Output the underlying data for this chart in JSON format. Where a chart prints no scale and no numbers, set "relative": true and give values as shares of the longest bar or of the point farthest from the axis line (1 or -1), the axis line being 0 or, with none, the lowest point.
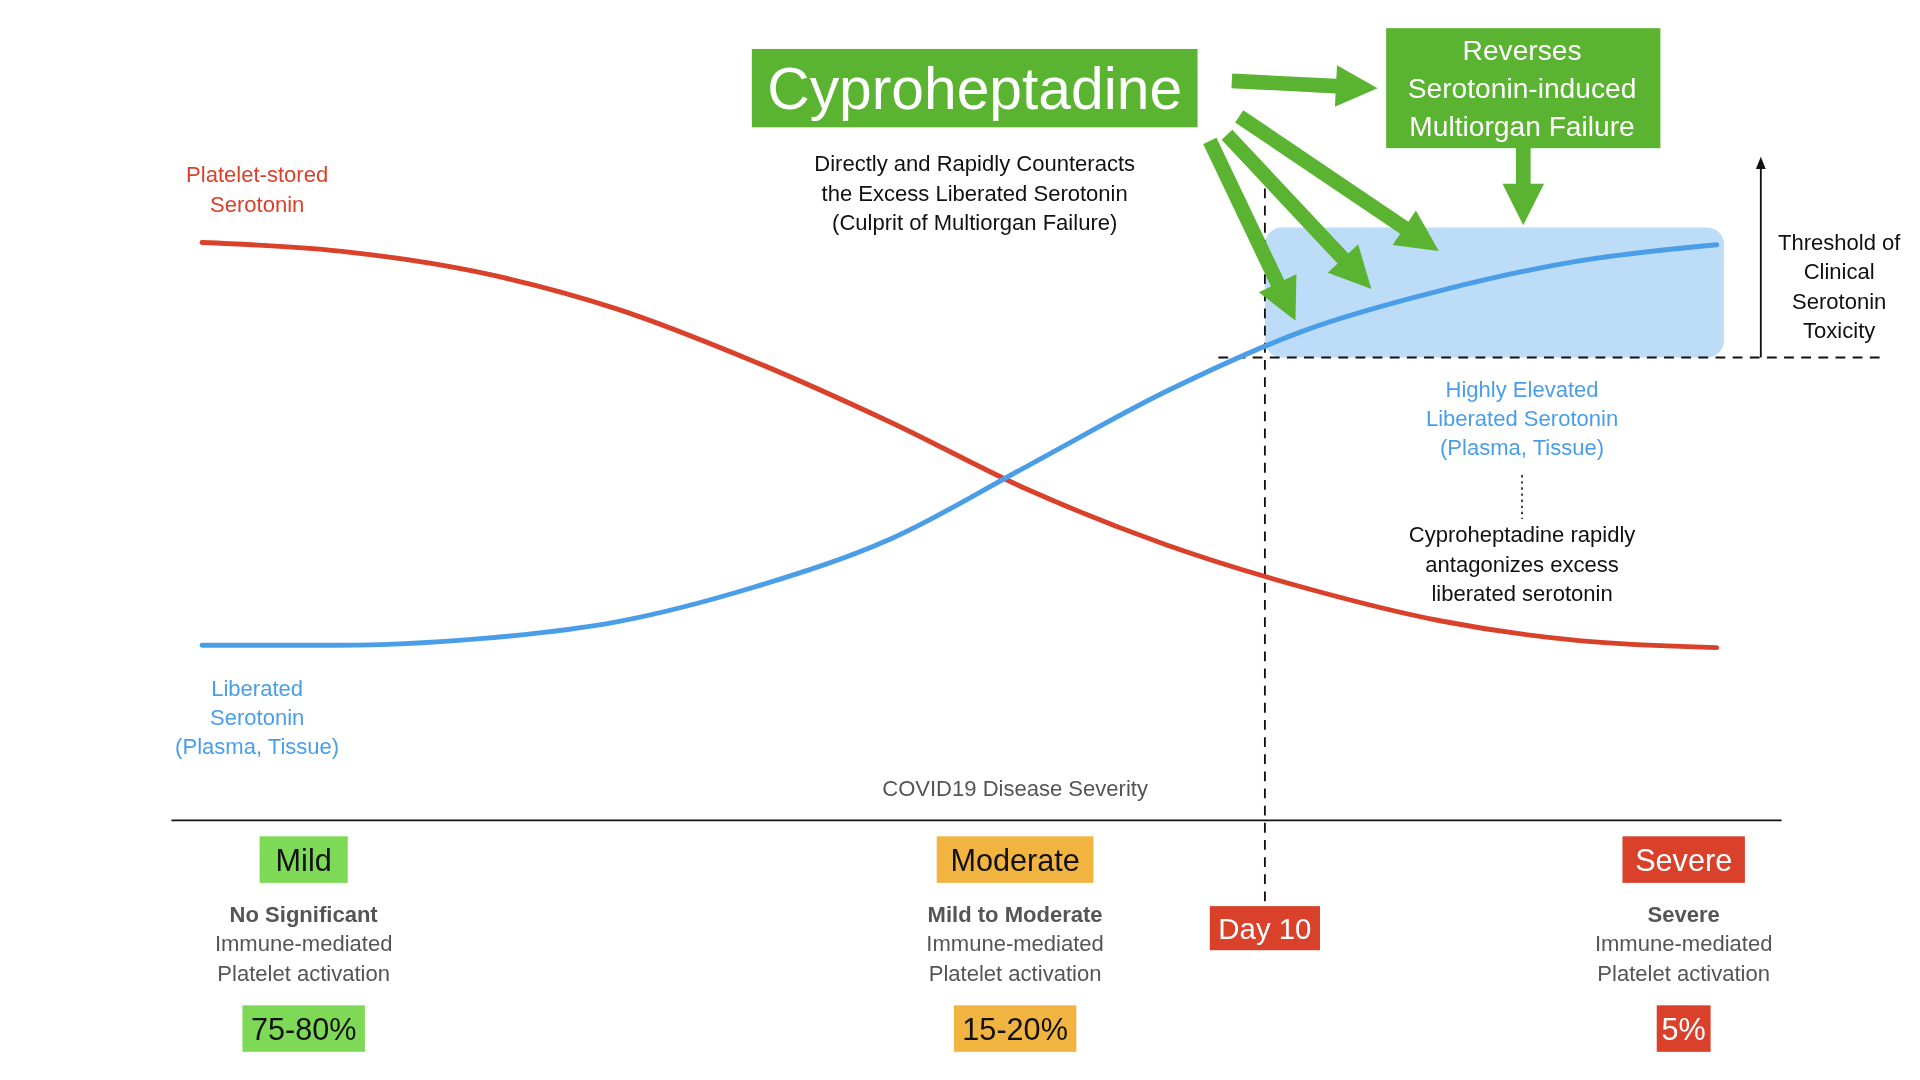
{
  "chart_data": {
    "type": "line",
    "relative": true,
    "xlabel": "COVID19 Disease Severity",
    "categories": [
      null,
      null,
      null,
      null,
      null,
      null,
      null,
      null,
      null,
      null,
      null,
      null
    ],
    "series": [
      {
        "name": "Platelet-stored Serotonin",
        "color": "#d9412b",
        "values": [
          1.0,
          0.985,
          0.949,
          0.886,
          0.795,
          0.689,
          0.572,
          0.477,
          0.403,
          0.345,
          0.311,
          0.299
        ]
      },
      {
        "name": "Liberated Serotonin (Plasma, Tissue)",
        "color": "#4a9ee8",
        "values": [
          0.303,
          0.303,
          0.314,
          0.343,
          0.403,
          0.487,
          0.614,
          0.742,
          0.847,
          0.917,
          0.968,
          0.996
        ]
      }
    ],
    "ref_lines": [
      {
        "axis": "y",
        "value": 0.801,
        "label": "Threshold of Clinical Serotonin Toxicity",
        "line_style": "dashed"
      }
    ],
    "bands": [
      {
        "axis": "y",
        "from": 0.801,
        "to": 1.026,
        "label": "Highly Elevated Liberated Serotonin (Plasma, Tissue)",
        "color": "#bcdcf7"
      }
    ],
    "annotations": [
      "Cyproheptadine",
      "Reverses Serotonin-induced Multiorgan Failure",
      "Directly and Rapidly Counteracts the Excess Liberated Serotonin (Culprit of Multiorgan Failure)",
      "Cyproheptadine rapidly antagonizes excess liberated serotonin",
      "Mild",
      "No Significant Immune-mediated Platelet activation",
      "75-80%",
      "Moderate",
      "Mild to Moderate Immune-mediated Platelet activation",
      "15-20%",
      "Severe",
      "Severe Immune-mediated Platelet activation",
      "5%",
      "Day 10"
    ],
    "legend": false,
    "grid": false,
    "marker": "none",
    "line_style": "solid"
  }
}
